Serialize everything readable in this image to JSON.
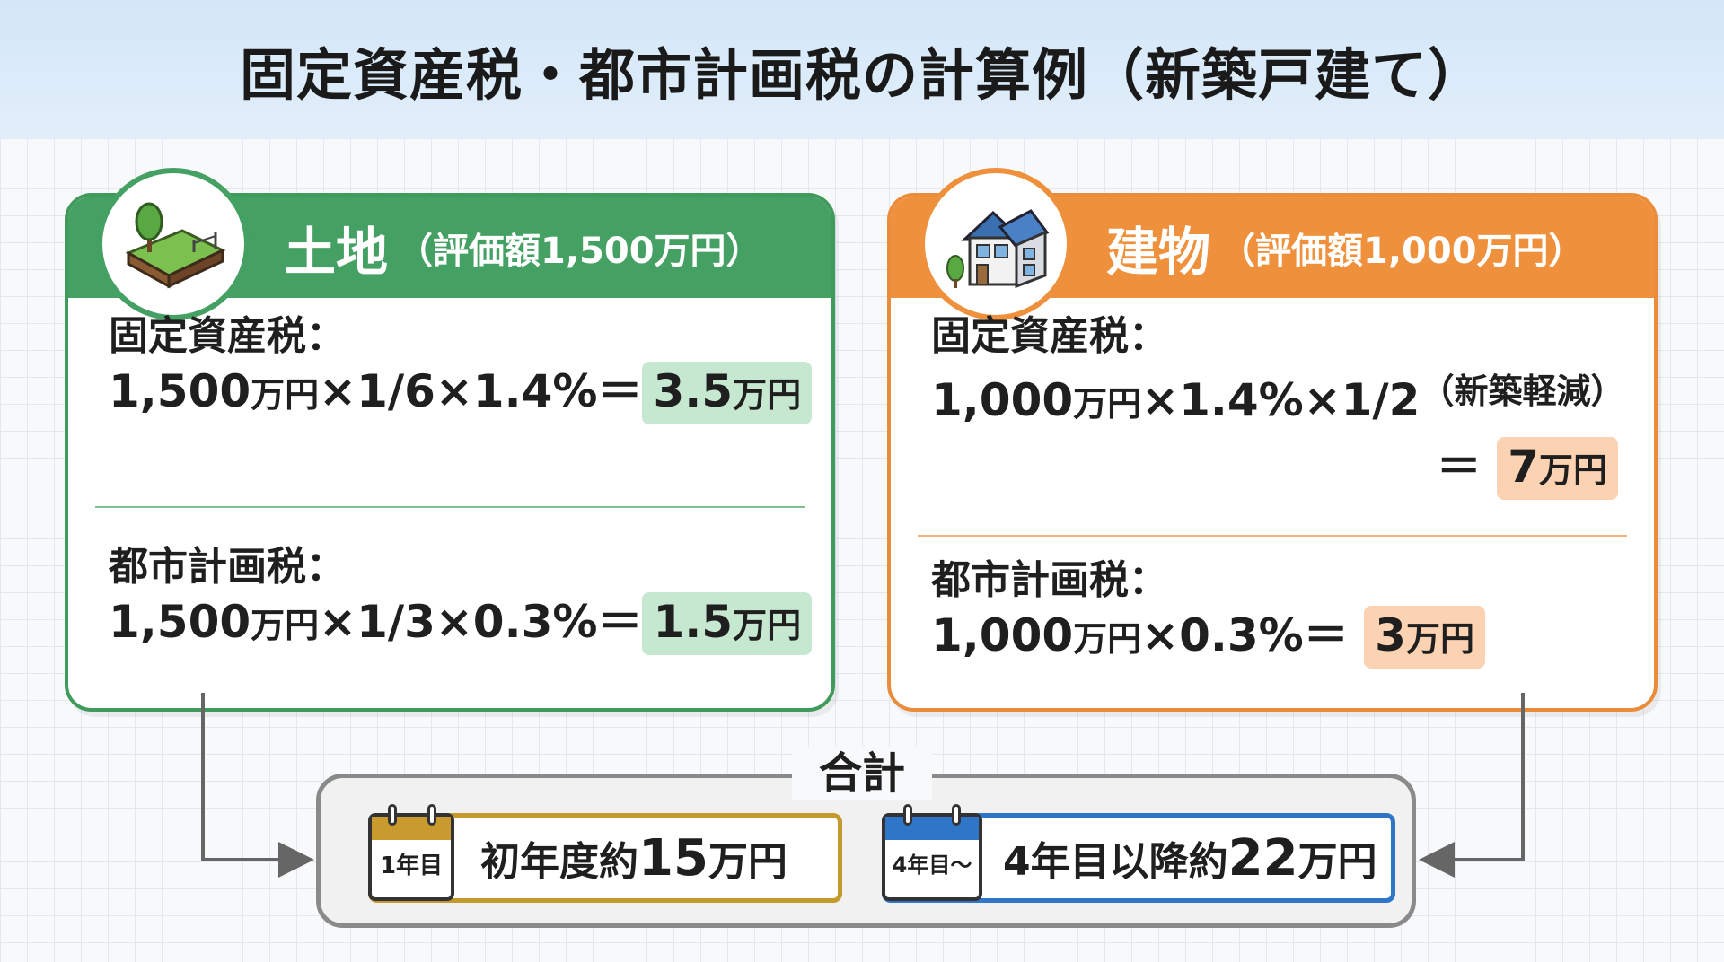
{
  "title": "固定資産税・都市計画税の計算例（新築戸建て）",
  "land": {
    "title": "土地",
    "subtitle": "（評価額1,500万円）",
    "fixed_tax_label": "固定資産税：",
    "fixed_tax_formula": {
      "a": "1,500",
      "b": "万円",
      "c": "×1/6×1.4%＝",
      "r": "3.5",
      "ru": "万円"
    },
    "city_tax_label": "都市計画税：",
    "city_tax_formula": {
      "a": "1,500",
      "b": "万円",
      "c": "×1/3×0.3%＝",
      "r": "1.5",
      "ru": "万円"
    }
  },
  "building": {
    "title": "建物",
    "subtitle": "（評価額1,000万円）",
    "fixed_tax_label": "固定資産税：",
    "fixed_tax_formula": {
      "a": "1,000",
      "b": "万円",
      "c": "×1.4%×1/2",
      "note": "（新築軽減）",
      "eq": "＝",
      "r": "7",
      "ru": "万円"
    },
    "city_tax_label": "都市計画税：",
    "city_tax_formula": {
      "a": "1,000",
      "b": "万円",
      "c": "×0.3%＝",
      "r": "3",
      "ru": "万円"
    }
  },
  "total": {
    "label": "合計",
    "first_year": {
      "badge": "1年目",
      "text": "初年度約",
      "amount": "15",
      "unit": "万円"
    },
    "later_years": {
      "badge": "4年目〜",
      "text": "4年目以降約",
      "amount": "22",
      "unit": "万円"
    }
  },
  "colors": {
    "land": "#45a063",
    "building": "#ee903c",
    "year1": "#c49a2c",
    "year4": "#2f76c9"
  },
  "icons": {
    "land": "land-plot-icon",
    "building": "house-icon",
    "calendar": "calendar-icon"
  }
}
